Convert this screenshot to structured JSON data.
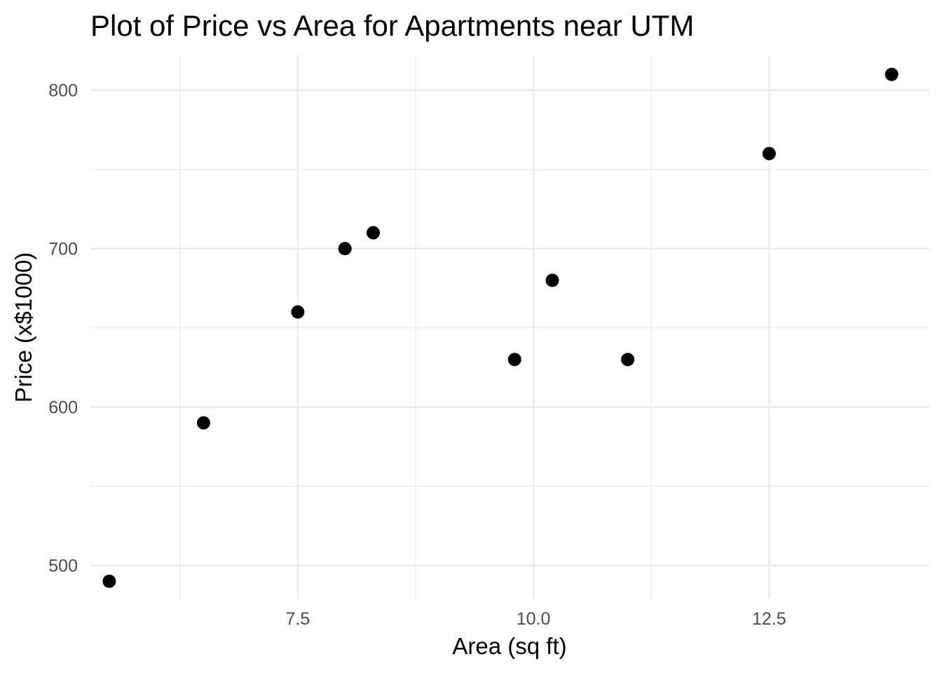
{
  "chart_data": {
    "type": "scatter",
    "title": "Plot of Price vs Area for Apartments near UTM",
    "xlabel": "Area (sq ft)",
    "ylabel": "Price (x$1000)",
    "grid": true,
    "legend": "none",
    "xlim": [
      5.3,
      14.2
    ],
    "ylim": [
      479,
      822
    ],
    "x_ticks": [
      7.5,
      10.0,
      12.5
    ],
    "x_tick_labels": [
      "7.5",
      "10.0",
      "12.5"
    ],
    "x_minor_ticks": [
      6.25,
      8.75,
      11.25
    ],
    "y_ticks": [
      500,
      600,
      700,
      800
    ],
    "y_tick_labels": [
      "500",
      "600",
      "700",
      "800"
    ],
    "y_minor_ticks": [
      550,
      650,
      750
    ],
    "point_color": "#000000",
    "points": [
      {
        "x": 5.5,
        "y": 490
      },
      {
        "x": 6.5,
        "y": 590
      },
      {
        "x": 7.5,
        "y": 660
      },
      {
        "x": 8.0,
        "y": 700
      },
      {
        "x": 8.3,
        "y": 710
      },
      {
        "x": 9.8,
        "y": 630
      },
      {
        "x": 10.2,
        "y": 680
      },
      {
        "x": 11.0,
        "y": 630
      },
      {
        "x": 12.5,
        "y": 760
      },
      {
        "x": 13.8,
        "y": 810
      }
    ]
  }
}
